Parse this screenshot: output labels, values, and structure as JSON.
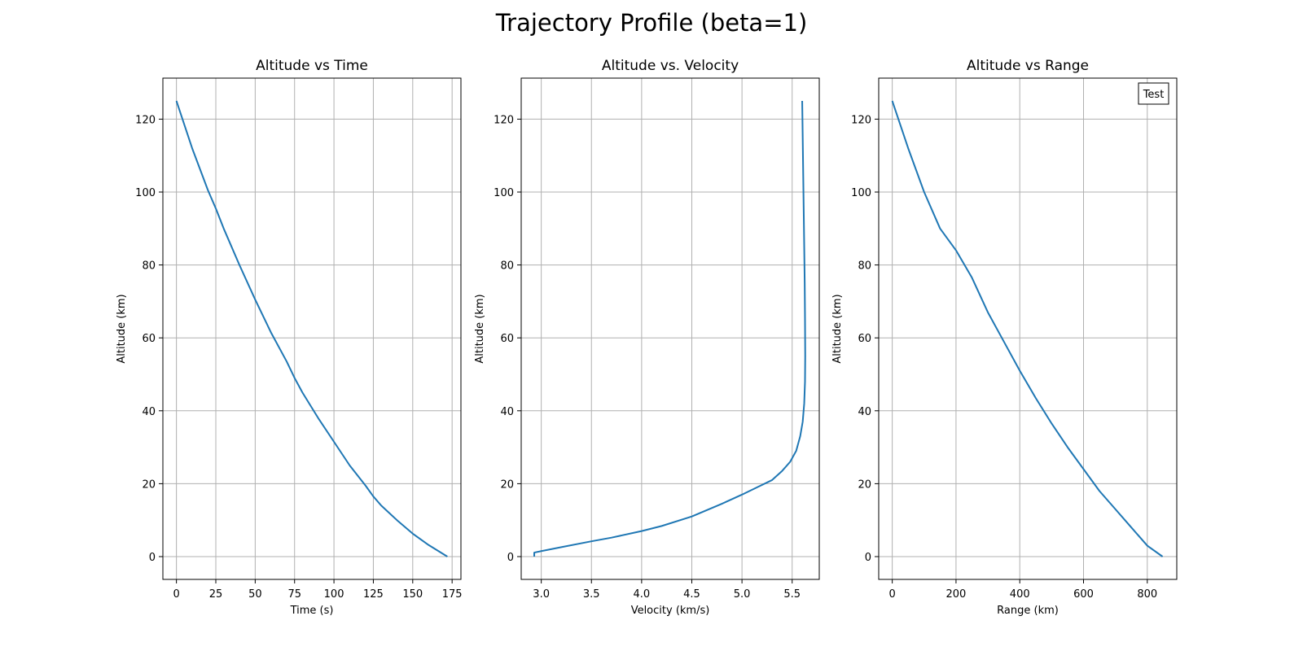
{
  "suptitle": "Trajectory Profile (beta=1)",
  "line_color": "#1f77b4",
  "grid_color": "#b0b0b0",
  "chart_data": [
    {
      "type": "line",
      "title": "Altitude vs Time",
      "xlabel": "Time (s)",
      "ylabel": "Altitude (km)",
      "xlim": [
        -8.6,
        180.6
      ],
      "ylim": [
        -6.25,
        131.25
      ],
      "xticks": [
        0,
        25,
        50,
        75,
        100,
        125,
        150,
        175
      ],
      "yticks": [
        0,
        20,
        40,
        60,
        80,
        100,
        120
      ],
      "grid": true,
      "series": [
        {
          "x": [
            0,
            10,
            20,
            25,
            30,
            40,
            50,
            60,
            70,
            75,
            80,
            90,
            100,
            110,
            120,
            125,
            130,
            140,
            150,
            160,
            172
          ],
          "y": [
            125,
            112,
            100.5,
            95.5,
            90,
            80,
            70.5,
            61.5,
            53.5,
            49,
            45,
            38,
            31.5,
            25,
            19.5,
            16.5,
            14,
            10,
            6.3,
            3.2,
            0
          ]
        }
      ]
    },
    {
      "type": "line",
      "title": "Altitude vs. Velocity",
      "xlabel": "Velocity (km/s)",
      "ylabel": "Altitude (km)",
      "xlim": [
        2.8,
        5.77
      ],
      "ylim": [
        -6.25,
        131.25
      ],
      "xticks": [
        3.0,
        3.5,
        4.0,
        4.5,
        5.0,
        5.5
      ],
      "yticks": [
        0,
        20,
        40,
        60,
        80,
        100,
        120
      ],
      "grid": true,
      "series": [
        {
          "x": [
            5.6,
            5.605,
            5.61,
            5.615,
            5.62,
            5.625,
            5.628,
            5.63,
            5.628,
            5.62,
            5.605,
            5.58,
            5.54,
            5.48,
            5.4,
            5.3,
            5.15,
            5.0,
            4.8,
            4.5,
            4.2,
            4.0,
            3.7,
            3.5,
            3.2,
            3.0,
            2.93,
            2.93,
            2.93
          ],
          "y": [
            125,
            115,
            105,
            95,
            85,
            75,
            65,
            55,
            48,
            42,
            37,
            33,
            29,
            26,
            23.5,
            21,
            19,
            17,
            14.5,
            11,
            8.4,
            7,
            5.2,
            4.2,
            2.6,
            1.5,
            1.1,
            0.5,
            0
          ]
        }
      ]
    },
    {
      "type": "line",
      "title": "Altitude vs Range",
      "xlabel": "Range (km)",
      "ylabel": "Altitude (km)",
      "xlim": [
        -42.5,
        892.5
      ],
      "ylim": [
        -6.25,
        131.25
      ],
      "xticks": [
        0,
        200,
        400,
        600,
        800
      ],
      "yticks": [
        0,
        20,
        40,
        60,
        80,
        100,
        120
      ],
      "grid": true,
      "legend": {
        "entries": [
          "Test"
        ],
        "placement": "top-right"
      },
      "series": [
        {
          "x": [
            0,
            50,
            100,
            150,
            200,
            250,
            300,
            350,
            400,
            450,
            500,
            550,
            600,
            650,
            700,
            750,
            800,
            848
          ],
          "y": [
            125,
            112,
            100,
            90,
            84,
            76.5,
            67,
            59,
            51,
            43.5,
            36.5,
            30,
            24,
            18,
            13,
            8,
            3,
            0
          ]
        }
      ]
    }
  ]
}
